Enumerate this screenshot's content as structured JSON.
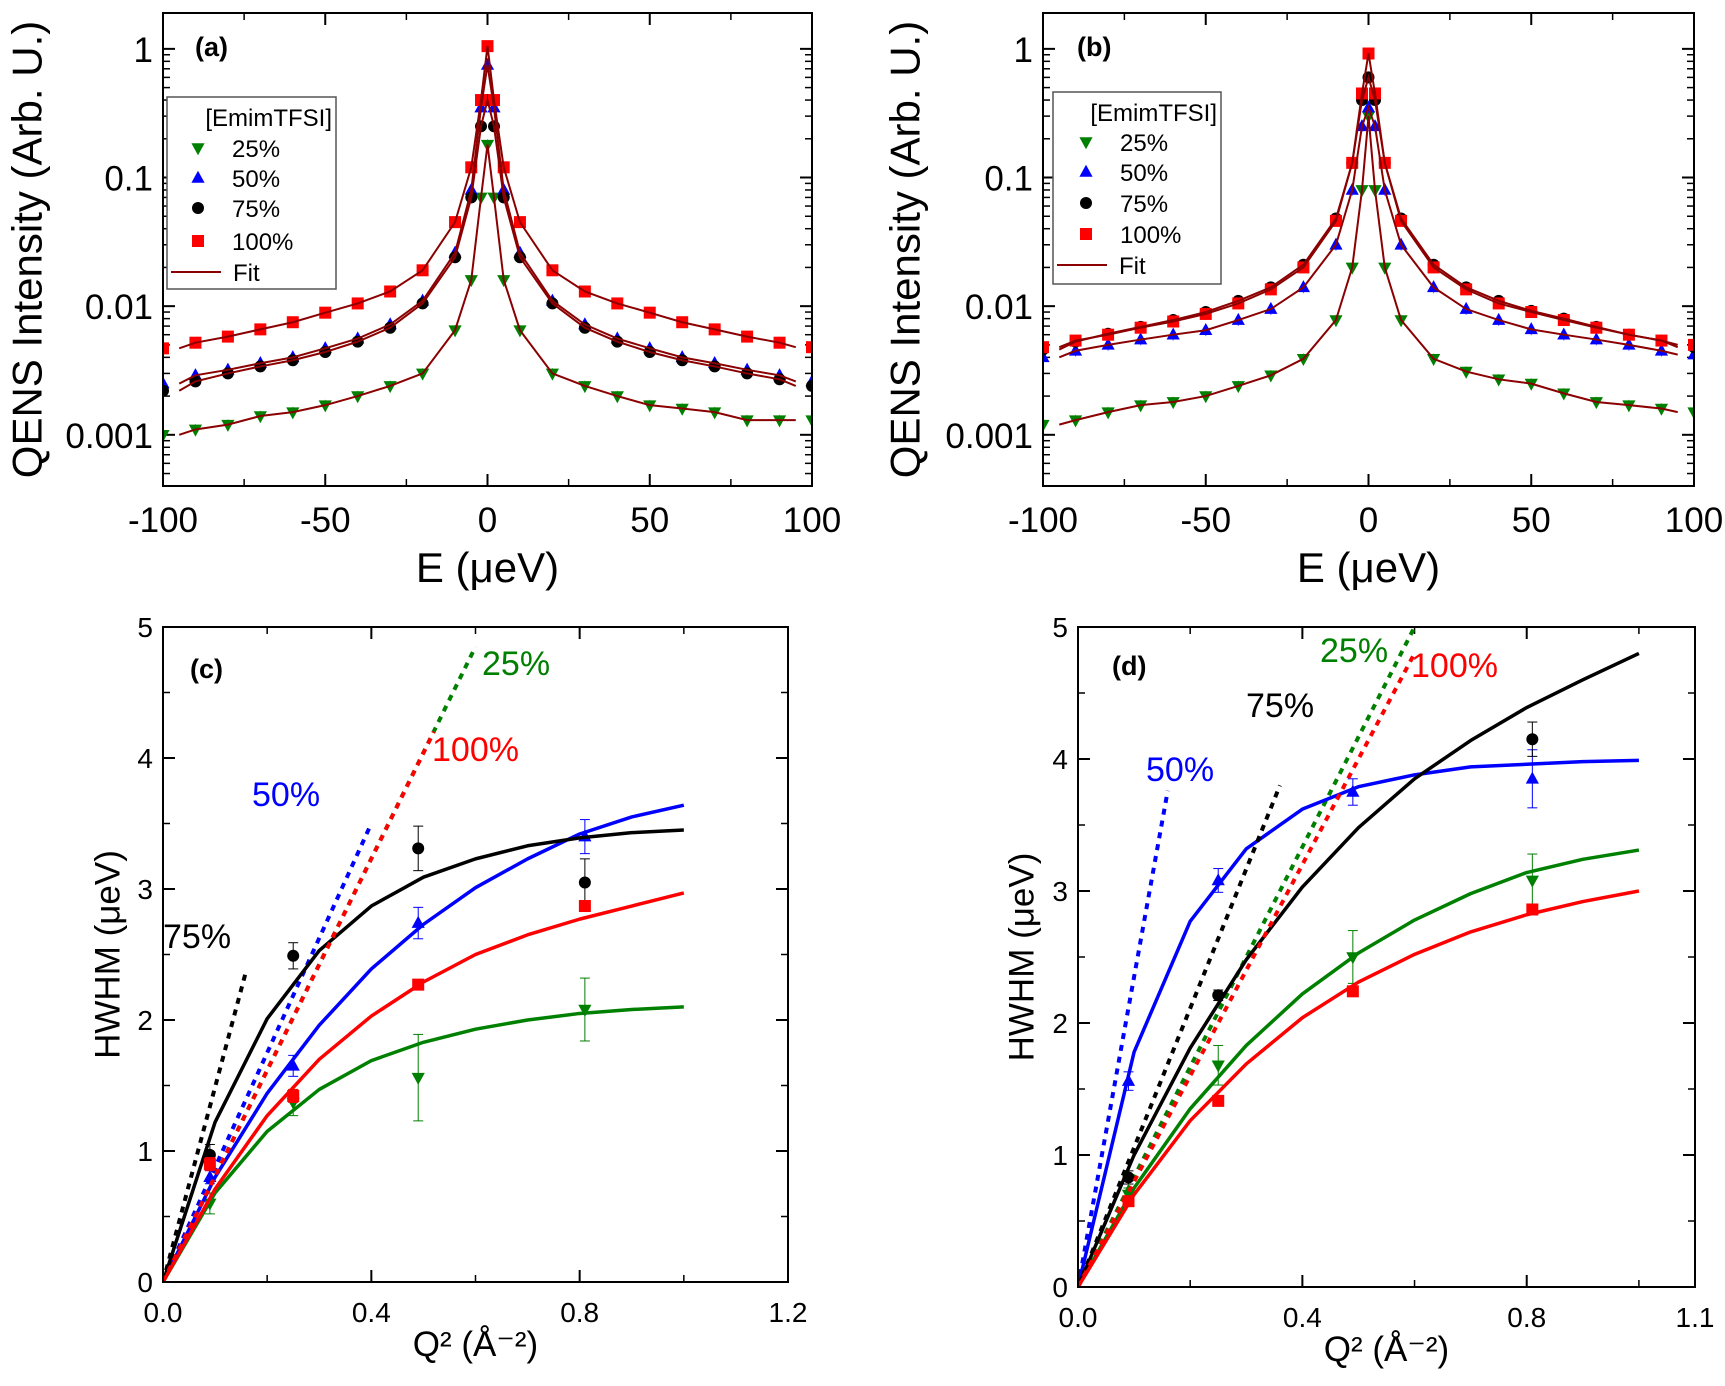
{
  "colors": {
    "25%": "#008000",
    "50%": "#0000ff",
    "75%": "#000000",
    "100%": "#ff0000",
    "fit": "#8b0000"
  },
  "chart_data": [
    {
      "panel": "(a)",
      "type": "scatter",
      "xlabel": "E (μeV)",
      "ylabel": "QENS Intensity (Arb. U.)",
      "xlim": [
        -100,
        100
      ],
      "ylim": [
        0.0004,
        1.9
      ],
      "yscale": "log",
      "xticks": [
        "-100",
        "-50",
        "0",
        "50",
        "100"
      ],
      "yticks": [
        "0.001",
        "0.01",
        "0.1",
        "1"
      ],
      "legend": {
        "title": "[EmimTFSI]",
        "position": "upper-left",
        "entries": [
          "25%",
          "50%",
          "75%",
          "100%",
          "Fit"
        ]
      },
      "x": [
        -100,
        -90,
        -80,
        -70,
        -60,
        -50,
        -40,
        -30,
        -20,
        -10,
        -5,
        -2,
        0,
        2,
        5,
        10,
        20,
        30,
        40,
        50,
        60,
        70,
        80,
        90,
        100
      ],
      "series": [
        {
          "name": "25%",
          "marker": "triangle-down",
          "values": [
            0.001,
            0.0011,
            0.0012,
            0.0014,
            0.0015,
            0.0017,
            0.002,
            0.0024,
            0.003,
            0.0065,
            0.016,
            0.07,
            0.18,
            0.07,
            0.016,
            0.0065,
            0.003,
            0.0024,
            0.002,
            0.0017,
            0.0016,
            0.0015,
            0.0013,
            0.0013,
            0.0013
          ]
        },
        {
          "name": "50%",
          "marker": "triangle-up",
          "values": [
            0.0025,
            0.0029,
            0.0032,
            0.0036,
            0.004,
            0.0047,
            0.0056,
            0.0072,
            0.011,
            0.026,
            0.08,
            0.35,
            0.75,
            0.35,
            0.08,
            0.026,
            0.011,
            0.0072,
            0.0056,
            0.0047,
            0.004,
            0.0036,
            0.0032,
            0.0029,
            0.0026
          ]
        },
        {
          "name": "75%",
          "marker": "circle",
          "values": [
            0.0022,
            0.0026,
            0.003,
            0.0034,
            0.0038,
            0.0044,
            0.0053,
            0.0068,
            0.0105,
            0.024,
            0.07,
            0.25,
            0.4,
            0.25,
            0.07,
            0.024,
            0.0105,
            0.0068,
            0.0053,
            0.0044,
            0.0038,
            0.0034,
            0.003,
            0.0027,
            0.0024
          ]
        },
        {
          "name": "100%",
          "marker": "square",
          "values": [
            0.0047,
            0.0052,
            0.0058,
            0.0066,
            0.0075,
            0.0089,
            0.0105,
            0.013,
            0.019,
            0.045,
            0.12,
            0.4,
            1.05,
            0.4,
            0.12,
            0.045,
            0.019,
            0.013,
            0.0105,
            0.0089,
            0.0075,
            0.0066,
            0.0058,
            0.0052,
            0.0048
          ]
        }
      ]
    },
    {
      "panel": "(b)",
      "type": "scatter",
      "xlabel": "E (μeV)",
      "ylabel": "QENS Intensity (Arb. U.)",
      "xlim": [
        -100,
        100
      ],
      "ylim": [
        0.0004,
        1.9
      ],
      "yscale": "log",
      "xticks": [
        "-100",
        "-50",
        "0",
        "50",
        "100"
      ],
      "yticks": [
        "0.001",
        "0.01",
        "0.1",
        "1"
      ],
      "legend": {
        "title": "[EmimTFSI]",
        "position": "upper-left",
        "entries": [
          "25%",
          "50%",
          "75%",
          "100%",
          "Fit"
        ]
      },
      "x": [
        -100,
        -90,
        -80,
        -70,
        -60,
        -50,
        -40,
        -30,
        -20,
        -10,
        -5,
        -2,
        0,
        2,
        5,
        10,
        20,
        30,
        40,
        50,
        60,
        70,
        80,
        90,
        100
      ],
      "series": [
        {
          "name": "25%",
          "marker": "triangle-down",
          "values": [
            0.0012,
            0.0013,
            0.0015,
            0.0017,
            0.0018,
            0.002,
            0.0024,
            0.0029,
            0.0039,
            0.0078,
            0.02,
            0.08,
            0.3,
            0.08,
            0.02,
            0.0078,
            0.0039,
            0.0031,
            0.0027,
            0.0025,
            0.0021,
            0.0018,
            0.0017,
            0.0016,
            0.0015
          ]
        },
        {
          "name": "50%",
          "marker": "triangle-up",
          "values": [
            0.004,
            0.0045,
            0.005,
            0.0055,
            0.006,
            0.0065,
            0.0078,
            0.0095,
            0.014,
            0.03,
            0.08,
            0.25,
            0.35,
            0.25,
            0.08,
            0.03,
            0.014,
            0.0095,
            0.0078,
            0.0066,
            0.006,
            0.0055,
            0.005,
            0.0045,
            0.0042
          ]
        },
        {
          "name": "75%",
          "marker": "circle",
          "values": [
            0.0046,
            0.0053,
            0.0061,
            0.0069,
            0.0078,
            0.009,
            0.011,
            0.014,
            0.021,
            0.048,
            0.13,
            0.4,
            0.6,
            0.4,
            0.13,
            0.048,
            0.021,
            0.014,
            0.011,
            0.0092,
            0.008,
            0.0069,
            0.006,
            0.0054,
            0.0048
          ]
        },
        {
          "name": "100%",
          "marker": "square",
          "values": [
            0.0048,
            0.0054,
            0.006,
            0.0068,
            0.0076,
            0.0087,
            0.0105,
            0.0135,
            0.02,
            0.046,
            0.13,
            0.45,
            0.92,
            0.45,
            0.13,
            0.046,
            0.02,
            0.0135,
            0.0105,
            0.009,
            0.0078,
            0.0068,
            0.006,
            0.0054,
            0.005
          ]
        }
      ]
    },
    {
      "panel": "(c)",
      "type": "scatter",
      "xlabel": "Q² (Å⁻²)",
      "ylabel": "HWHM (μeV)",
      "xlim": [
        0,
        1.2
      ],
      "ylim": [
        0,
        5
      ],
      "xticks": [
        "0.0",
        "0.4",
        "0.8",
        "1.2"
      ],
      "yticks": [
        "0",
        "1",
        "2",
        "3",
        "4",
        "5"
      ],
      "points_x": [
        0.09,
        0.25,
        0.49,
        0.81
      ],
      "fit_x": [
        0,
        0.1,
        0.2,
        0.3,
        0.4,
        0.5,
        0.6,
        0.7,
        0.8,
        0.9,
        1.0
      ],
      "series": [
        {
          "name": "25%",
          "marker": "triangle-down",
          "values": [
            0.6,
            1.37,
            1.56,
            2.08
          ],
          "errors": [
            0.08,
            0.1,
            0.33,
            0.24
          ],
          "fit": [
            0,
            0.68,
            1.15,
            1.47,
            1.69,
            1.83,
            1.93,
            2.0,
            2.05,
            2.08,
            2.1
          ],
          "slope_line": {
            "x": [
              0,
              0.6
            ],
            "y": [
              0,
              4.85
            ]
          }
        },
        {
          "name": "50%",
          "marker": "triangle-up",
          "values": [
            0.8,
            1.65,
            2.74,
            3.4
          ],
          "errors": [
            0.05,
            0.08,
            0.12,
            0.13
          ],
          "fit": [
            0,
            0.8,
            1.44,
            1.96,
            2.39,
            2.73,
            3.01,
            3.23,
            3.42,
            3.55,
            3.64
          ],
          "slope_line": {
            "x": [
              0,
              0.4
            ],
            "y": [
              0,
              3.5
            ]
          }
        },
        {
          "name": "75%",
          "marker": "circle",
          "values": [
            0.97,
            2.49,
            3.31,
            3.05
          ],
          "errors": [
            0.08,
            0.1,
            0.17,
            0.18
          ],
          "fit": [
            0,
            1.22,
            2.01,
            2.53,
            2.87,
            3.09,
            3.23,
            3.33,
            3.39,
            3.43,
            3.45
          ],
          "slope_line": {
            "x": [
              0,
              0.16
            ],
            "y": [
              0,
              2.38
            ]
          }
        },
        {
          "name": "100%",
          "marker": "square",
          "values": [
            0.9,
            1.42,
            2.27,
            2.87
          ],
          "errors": [
            0.05,
            0.05,
            0.03,
            0.04
          ],
          "fit": [
            0,
            0.71,
            1.27,
            1.7,
            2.03,
            2.29,
            2.5,
            2.65,
            2.77,
            2.87,
            2.97
          ],
          "slope_line": {
            "x": [
              0,
              0.52
            ],
            "y": [
              0,
              4.2
            ]
          }
        }
      ],
      "annotations": [
        "25%",
        "100%",
        "50%",
        "75%"
      ]
    },
    {
      "panel": "(d)",
      "type": "scatter",
      "xlabel": "Q² (Å⁻²)",
      "ylabel": "HWHM (μeV)",
      "xlim": [
        0,
        1.1
      ],
      "ylim": [
        0,
        5
      ],
      "xticks": [
        "0.0",
        "0.4",
        "0.8",
        "1.1"
      ],
      "yticks": [
        "0",
        "1",
        "2",
        "3",
        "4",
        "5"
      ],
      "points_x": [
        0.09,
        0.25,
        0.49,
        0.81
      ],
      "fit_x": [
        0,
        0.1,
        0.2,
        0.3,
        0.4,
        0.5,
        0.6,
        0.7,
        0.8,
        0.9,
        1.0
      ],
      "series": [
        {
          "name": "25%",
          "marker": "triangle-down",
          "values": [
            0.7,
            1.68,
            2.5,
            3.08
          ],
          "errors": [
            0.05,
            0.15,
            0.2,
            0.2
          ],
          "fit": [
            0,
            0.75,
            1.35,
            1.83,
            2.22,
            2.53,
            2.78,
            2.98,
            3.14,
            3.24,
            3.31
          ],
          "slope_line": {
            "x": [
              0,
              0.6
            ],
            "y": [
              0,
              5.0
            ]
          }
        },
        {
          "name": "50%",
          "marker": "triangle-up",
          "values": [
            1.56,
            3.08,
            3.75,
            3.85
          ],
          "errors": [
            0.07,
            0.09,
            0.1,
            0.22
          ],
          "fit": [
            0,
            1.78,
            2.77,
            3.32,
            3.62,
            3.79,
            3.88,
            3.94,
            3.96,
            3.98,
            3.99
          ],
          "slope_line": {
            "x": [
              0,
              0.16
            ],
            "y": [
              0,
              3.76
            ]
          }
        },
        {
          "name": "75%",
          "marker": "circle",
          "values": [
            0.83,
            2.21,
            null,
            4.15
          ],
          "errors": [
            0.05,
            0.04,
            null,
            0.13
          ],
          "fit": [
            0,
            1.0,
            1.81,
            2.48,
            3.03,
            3.48,
            3.85,
            4.14,
            4.39,
            4.6,
            4.8
          ],
          "slope_line": {
            "x": [
              0,
              0.36
            ],
            "y": [
              0,
              3.8
            ]
          }
        },
        {
          "name": "100%",
          "marker": "square",
          "values": [
            0.65,
            1.41,
            2.24,
            2.86
          ],
          "errors": [
            0.03,
            0.03,
            0.03,
            0.04
          ],
          "fit": [
            0,
            0.7,
            1.26,
            1.69,
            2.04,
            2.31,
            2.52,
            2.69,
            2.82,
            2.92,
            3.0
          ],
          "slope_line": {
            "x": [
              0,
              0.6
            ],
            "y": [
              0,
              4.8
            ]
          }
        }
      ],
      "annotations": [
        "25%",
        "100%",
        "75%",
        "50%"
      ]
    }
  ]
}
